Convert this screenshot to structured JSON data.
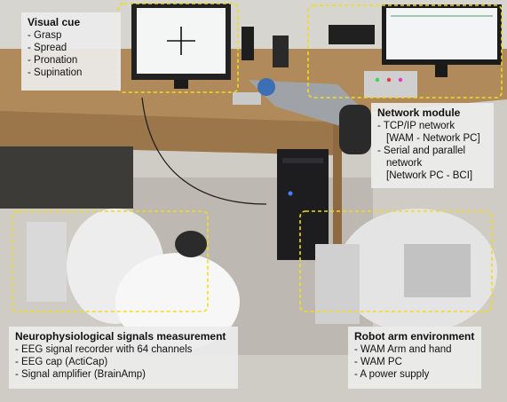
{
  "colors": {
    "highlight_dash": "#f2dc1a",
    "label_bg": "#ececec"
  },
  "labels": {
    "visual_cue": {
      "title": "Visual cue",
      "items": [
        "- Grasp",
        "- Spread",
        "- Pronation",
        "- Supination"
      ]
    },
    "network_module": {
      "title": "Network module",
      "items": [
        "- TCP/IP network",
        "[WAM - Network PC]",
        "- Serial and parallel",
        "network",
        "[Network PC - BCI]"
      ]
    },
    "neuro": {
      "title": "Neurophysiological signals measurement",
      "items": [
        "- EEG signal recorder with 64 channels",
        "- EEG cap (ActiCap)",
        "- Signal amplifier (BrainAmp)"
      ]
    },
    "robot_env": {
      "title": "Robot arm environment",
      "items": [
        "- WAM Arm and hand",
        "- WAM PC",
        "- A power supply"
      ]
    }
  }
}
